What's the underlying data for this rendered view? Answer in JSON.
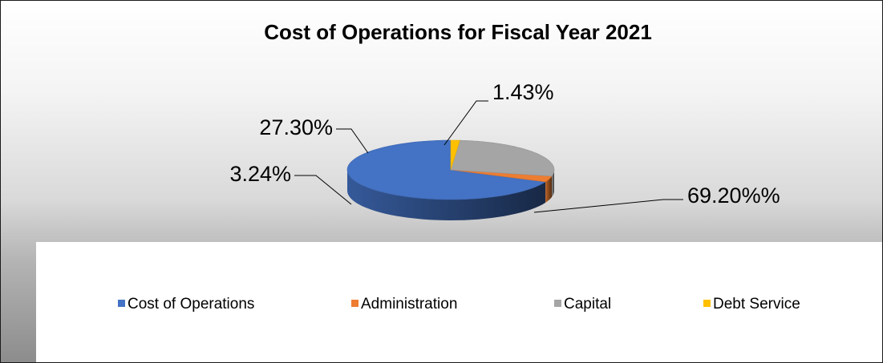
{
  "chart_data": {
    "type": "pie",
    "title": "Cost of Operations for Fiscal Year 2021",
    "categories": [
      "Cost of Operations",
      "Administration",
      "Capital",
      "Debt Service"
    ],
    "values": [
      69.2,
      3.24,
      27.3,
      1.43
    ],
    "data_labels": [
      "69.20%%",
      "3.24%",
      "27.30%",
      "1.43%"
    ],
    "colors": [
      "#4472C4",
      "#ED7D31",
      "#A5A5A5",
      "#FFC000"
    ],
    "style": "3d",
    "legend_position": "bottom"
  }
}
